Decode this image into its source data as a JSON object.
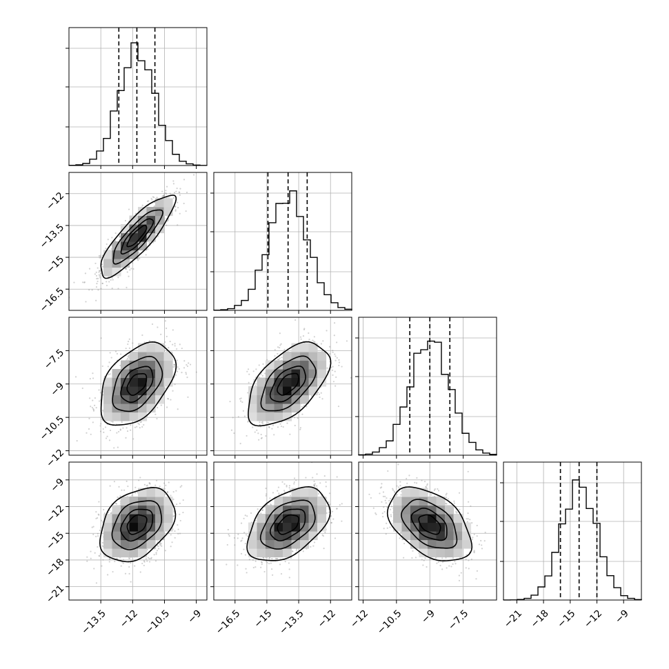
{
  "chart_data": {
    "type": "corner",
    "title": "",
    "parameters": [
      {
        "index": 0,
        "range": [
          -15.0,
          -8.5
        ],
        "mean": -11.8,
        "sd": 0.85,
        "quantiles": [
          -12.65,
          -11.8,
          -10.95
        ],
        "ticks": [
          -13.5,
          -12.0,
          -10.5,
          -9.0
        ]
      },
      {
        "index": 1,
        "range": [
          -17.5,
          -11.0
        ],
        "mean": -14.0,
        "sd": 0.93,
        "quantiles": [
          -14.95,
          -14.0,
          -13.1
        ],
        "ticks": [
          -16.5,
          -15.0,
          -13.5,
          -12.0
        ]
      },
      {
        "index": 2,
        "range": [
          -12.2,
          -6.0
        ],
        "mean": -9.0,
        "sd": 0.9,
        "quantiles": [
          -9.9,
          -9.0,
          -8.1
        ],
        "ticks": [
          -12.0,
          -10.5,
          -9.0,
          -7.5
        ]
      },
      {
        "index": 3,
        "range": [
          -22.5,
          -7.0
        ],
        "mean": -14.0,
        "sd": 2.0,
        "quantiles": [
          -16.1,
          -14.0,
          -12.0
        ],
        "ticks": [
          -21,
          -18,
          -15,
          -12,
          -9
        ]
      }
    ],
    "correlations": [
      {
        "i": 1,
        "j": 0,
        "rho": 0.85
      },
      {
        "i": 2,
        "j": 0,
        "rho": 0.45
      },
      {
        "i": 2,
        "j": 1,
        "rho": 0.55
      },
      {
        "i": 3,
        "j": 0,
        "rho": 0.35
      },
      {
        "i": 3,
        "j": 1,
        "rho": 0.45
      },
      {
        "i": 3,
        "j": 2,
        "rho": -0.45
      }
    ],
    "contour_levels_sigma": [
      0.5,
      1.0,
      1.5,
      2.0
    ],
    "quantile_line_style": "dashed",
    "grid": true,
    "legend": "none"
  }
}
